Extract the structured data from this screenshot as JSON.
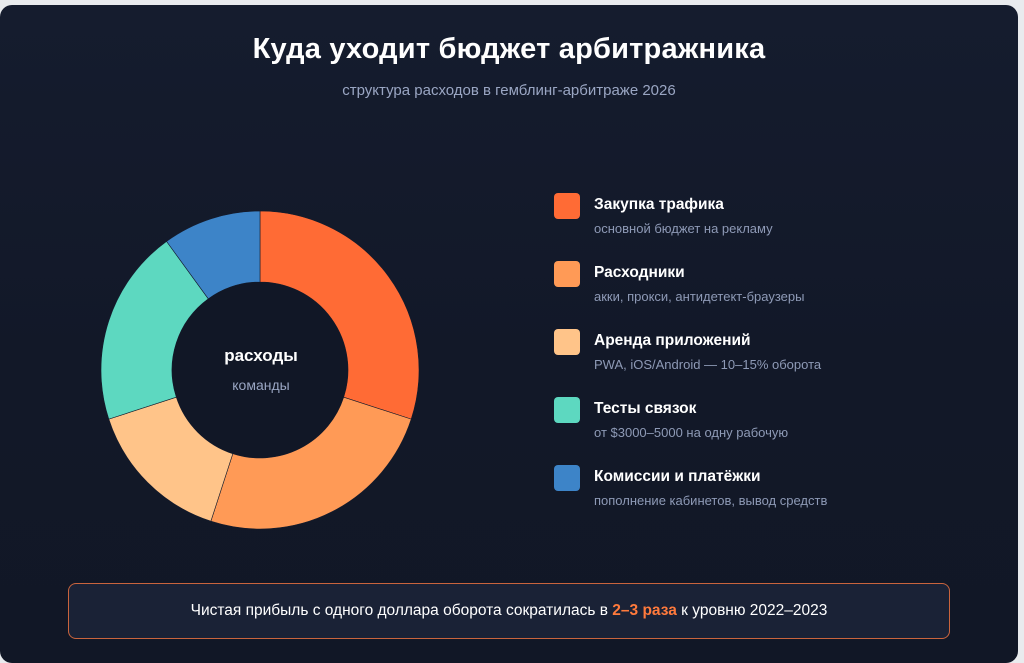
{
  "title": "Куда уходит бюджет арбитражника",
  "subtitle": "структура расходов в гемблинг-арбитраже 2026",
  "center": {
    "title": "расходы",
    "subtitle": "команды"
  },
  "legend": [
    {
      "label": "Закупка трафика",
      "desc": "основной бюджет на рекламу",
      "color": "#ff6b35"
    },
    {
      "label": "Расходники",
      "desc": "акки, прокси, антидетект-браузеры",
      "color": "#ff9a56"
    },
    {
      "label": "Аренда приложений",
      "desc": "PWA, iOS/Android — 10–15% оборота",
      "color": "#ffc489"
    },
    {
      "label": "Тесты связок",
      "desc": "от $3000–5000 на одну рабочую",
      "color": "#5dd8c0"
    },
    {
      "label": "Комиссии и платёжки",
      "desc": "пополнение кабинетов, вывод средств",
      "color": "#3d84c8"
    }
  ],
  "note": {
    "before": "Чистая прибыль с одного доллара оборота сократилась в ",
    "highlight": "2–3 раза",
    "after": " к уровню 2022–2023",
    "border_color": "#c9643d",
    "highlight_color": "#ff7a3c"
  },
  "chart_data": {
    "type": "pie",
    "donut": true,
    "categories": [
      "Закупка трафика",
      "Расходники",
      "Аренда приложений",
      "Тесты связок",
      "Комиссии и платёжки"
    ],
    "values": [
      30,
      25,
      15,
      20,
      10
    ],
    "colors": [
      "#ff6b35",
      "#ff9a56",
      "#ffc489",
      "#5dd8c0",
      "#3d84c8"
    ],
    "legend_position": "right"
  }
}
